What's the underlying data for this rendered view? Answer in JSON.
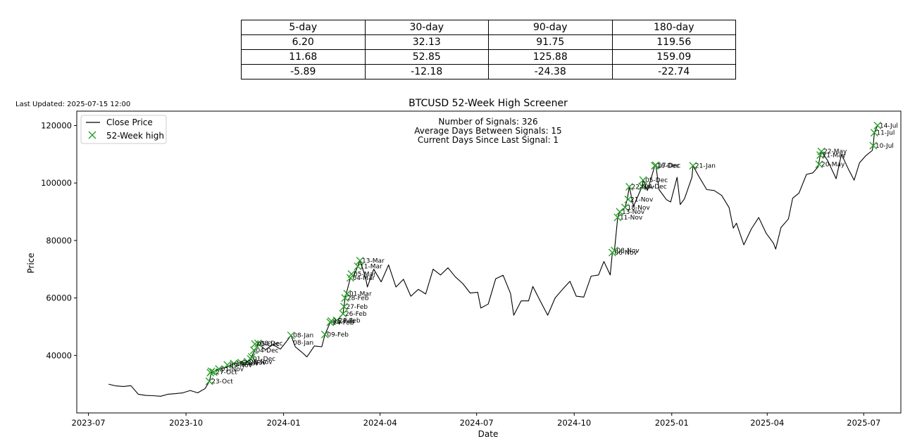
{
  "stats_table": {
    "headers": [
      "5-day",
      "30-day",
      "90-day",
      "180-day"
    ],
    "rows": [
      [
        "6.20",
        "32.13",
        "91.75",
        "119.56"
      ],
      [
        "11.68",
        "52.85",
        "125.88",
        "159.09"
      ],
      [
        "-5.89",
        "-12.18",
        "-24.38",
        "-22.74"
      ]
    ]
  },
  "last_updated": "Last Updated: 2025-07-15 12:00",
  "chart_data": {
    "type": "line",
    "title": "BTCUSD 52-Week High Screener",
    "xlabel": "Date",
    "ylabel": "Price",
    "ylim": [
      20000,
      125000
    ],
    "xlim": [
      "2023-06-20",
      "2025-08-05"
    ],
    "x_ticks": [
      "2023-07",
      "2023-10",
      "2024-01",
      "2024-04",
      "2024-07",
      "2024-10",
      "2025-01",
      "2025-04",
      "2025-07"
    ],
    "y_ticks": [
      40000,
      60000,
      80000,
      100000,
      120000
    ],
    "y_tick_labels": [
      "40000",
      "60000",
      "80000",
      "100000",
      "120000"
    ],
    "legend": {
      "location": "top-left",
      "entries": [
        "Close Price",
        "52-Week high"
      ]
    },
    "colors": {
      "line": "#000000",
      "marker": "#2ca02c"
    },
    "annotations": [
      "Number of Signals: 326",
      "Average Days Between Signals: 15",
      "Current Days Since Last Signal: 1"
    ],
    "series": [
      {
        "name": "Close Price",
        "points": [
          [
            "2023-07-20",
            30000
          ],
          [
            "2023-07-27",
            29400
          ],
          [
            "2023-08-03",
            29200
          ],
          [
            "2023-08-10",
            29500
          ],
          [
            "2023-08-17",
            26500
          ],
          [
            "2023-08-24",
            26100
          ],
          [
            "2023-08-31",
            26000
          ],
          [
            "2023-09-07",
            25800
          ],
          [
            "2023-09-14",
            26500
          ],
          [
            "2023-09-21",
            26700
          ],
          [
            "2023-09-28",
            27000
          ],
          [
            "2023-10-05",
            27800
          ],
          [
            "2023-10-12",
            27000
          ],
          [
            "2023-10-19",
            28500
          ],
          [
            "2023-10-23",
            31000
          ],
          [
            "2023-10-25",
            34000
          ],
          [
            "2023-11-01",
            35300
          ],
          [
            "2023-11-08",
            35800
          ],
          [
            "2023-11-15",
            37200
          ],
          [
            "2023-11-22",
            37500
          ],
          [
            "2023-11-29",
            37800
          ],
          [
            "2023-12-05",
            41800
          ],
          [
            "2023-12-08",
            44000
          ],
          [
            "2023-12-15",
            42000
          ],
          [
            "2023-12-22",
            43800
          ],
          [
            "2023-12-29",
            42200
          ],
          [
            "2024-01-03",
            44500
          ],
          [
            "2024-01-08",
            47000
          ],
          [
            "2024-01-12",
            43000
          ],
          [
            "2024-01-18",
            41200
          ],
          [
            "2024-01-23",
            39500
          ],
          [
            "2024-01-30",
            43300
          ],
          [
            "2024-02-06",
            43000
          ],
          [
            "2024-02-09",
            47300
          ],
          [
            "2024-02-14",
            51500
          ],
          [
            "2024-02-20",
            52000
          ],
          [
            "2024-02-26",
            54500
          ],
          [
            "2024-02-28",
            60000
          ],
          [
            "2024-03-04",
            67000
          ],
          [
            "2024-03-08",
            68300
          ],
          [
            "2024-03-13",
            73000
          ],
          [
            "2024-03-18",
            67500
          ],
          [
            "2024-03-20",
            63800
          ],
          [
            "2024-03-26",
            70000
          ],
          [
            "2024-04-02",
            65600
          ],
          [
            "2024-04-09",
            71500
          ],
          [
            "2024-04-16",
            63800
          ],
          [
            "2024-04-23",
            66500
          ],
          [
            "2024-04-30",
            60600
          ],
          [
            "2024-05-07",
            63000
          ],
          [
            "2024-05-14",
            61400
          ],
          [
            "2024-05-21",
            70000
          ],
          [
            "2024-05-28",
            68000
          ],
          [
            "2024-06-04",
            70500
          ],
          [
            "2024-06-11",
            67300
          ],
          [
            "2024-06-18",
            65000
          ],
          [
            "2024-06-25",
            61700
          ],
          [
            "2024-07-02",
            62000
          ],
          [
            "2024-07-05",
            56500
          ],
          [
            "2024-07-12",
            57900
          ],
          [
            "2024-07-19",
            66700
          ],
          [
            "2024-07-26",
            67900
          ],
          [
            "2024-08-02",
            61500
          ],
          [
            "2024-08-05",
            54000
          ],
          [
            "2024-08-12",
            59000
          ],
          [
            "2024-08-19",
            59000
          ],
          [
            "2024-08-23",
            64000
          ],
          [
            "2024-08-30",
            59000
          ],
          [
            "2024-09-06",
            54000
          ],
          [
            "2024-09-13",
            60000
          ],
          [
            "2024-09-20",
            63000
          ],
          [
            "2024-09-27",
            65800
          ],
          [
            "2024-10-03",
            60600
          ],
          [
            "2024-10-10",
            60300
          ],
          [
            "2024-10-17",
            67600
          ],
          [
            "2024-10-24",
            68000
          ],
          [
            "2024-10-29",
            72700
          ],
          [
            "2024-11-04",
            68000
          ],
          [
            "2024-11-06",
            75800
          ],
          [
            "2024-11-08",
            76500
          ],
          [
            "2024-11-11",
            88000
          ],
          [
            "2024-11-13",
            90000
          ],
          [
            "2024-11-18",
            91500
          ],
          [
            "2024-11-20",
            94300
          ],
          [
            "2024-11-22",
            98700
          ],
          [
            "2024-11-26",
            91900
          ],
          [
            "2024-12-04",
            98800
          ],
          [
            "2024-12-05",
            101000
          ],
          [
            "2024-12-09",
            97400
          ],
          [
            "2024-12-12",
            101000
          ],
          [
            "2024-12-16",
            106000
          ],
          [
            "2024-12-17",
            106200
          ],
          [
            "2024-12-20",
            97700
          ],
          [
            "2024-12-27",
            94200
          ],
          [
            "2024-12-31",
            93400
          ],
          [
            "2025-01-06",
            102000
          ],
          [
            "2025-01-09",
            92500
          ],
          [
            "2025-01-13",
            94500
          ],
          [
            "2025-01-20",
            102000
          ],
          [
            "2025-01-21",
            106000
          ],
          [
            "2025-01-27",
            102000
          ],
          [
            "2025-02-03",
            97700
          ],
          [
            "2025-02-10",
            97400
          ],
          [
            "2025-02-17",
            95700
          ],
          [
            "2025-02-24",
            91500
          ],
          [
            "2025-02-28",
            84300
          ],
          [
            "2025-03-03",
            86000
          ],
          [
            "2025-03-10",
            78500
          ],
          [
            "2025-03-17",
            84000
          ],
          [
            "2025-03-24",
            88000
          ],
          [
            "2025-03-31",
            82500
          ],
          [
            "2025-04-07",
            79000
          ],
          [
            "2025-04-09",
            77000
          ],
          [
            "2025-04-14",
            84500
          ],
          [
            "2025-04-21",
            87500
          ],
          [
            "2025-04-25",
            94700
          ],
          [
            "2025-05-01",
            96500
          ],
          [
            "2025-05-08",
            103000
          ],
          [
            "2025-05-14",
            103500
          ],
          [
            "2025-05-19",
            105600
          ],
          [
            "2025-05-21",
            109700
          ],
          [
            "2025-05-22",
            111000
          ],
          [
            "2025-05-28",
            107800
          ],
          [
            "2025-06-05",
            101500
          ],
          [
            "2025-06-10",
            110000
          ],
          [
            "2025-06-17",
            104500
          ],
          [
            "2025-06-22",
            101000
          ],
          [
            "2025-06-27",
            107000
          ],
          [
            "2025-07-03",
            109500
          ],
          [
            "2025-07-09",
            111300
          ],
          [
            "2025-07-10",
            113000
          ],
          [
            "2025-07-11",
            117500
          ],
          [
            "2025-07-14",
            120000
          ]
        ]
      },
      {
        "name": "52-Week high",
        "marker": "x",
        "points": [
          [
            "2023-10-23",
            31000
          ],
          [
            "2023-10-24",
            34000
          ],
          [
            "2023-10-25",
            34500
          ],
          [
            "2023-10-27",
            34200
          ],
          [
            "2023-11-01",
            35300
          ],
          [
            "2023-11-09",
            36700
          ],
          [
            "2023-11-15",
            37200
          ],
          [
            "2023-11-22",
            37500
          ],
          [
            "2023-11-28",
            37800
          ],
          [
            "2023-12-01",
            38800
          ],
          [
            "2023-12-02",
            39500
          ],
          [
            "2023-12-04",
            41800
          ],
          [
            "2023-12-05",
            44000
          ],
          [
            "2023-12-08",
            44200
          ],
          [
            "2024-01-08",
            47000
          ],
          [
            "2024-02-09",
            47300
          ],
          [
            "2024-02-14",
            51500
          ],
          [
            "2024-02-15",
            52000
          ],
          [
            "2024-02-20",
            52200
          ],
          [
            "2024-02-26",
            54500
          ],
          [
            "2024-02-27",
            57000
          ],
          [
            "2024-02-28",
            60000
          ],
          [
            "2024-03-01",
            61500
          ],
          [
            "2024-03-04",
            67000
          ],
          [
            "2024-03-05",
            68300
          ],
          [
            "2024-03-11",
            71000
          ],
          [
            "2024-03-13",
            73000
          ],
          [
            "2024-11-06",
            75800
          ],
          [
            "2024-11-08",
            76500
          ],
          [
            "2024-11-11",
            88000
          ],
          [
            "2024-11-13",
            90000
          ],
          [
            "2024-11-18",
            91500
          ],
          [
            "2024-11-21",
            94300
          ],
          [
            "2024-11-22",
            98700
          ],
          [
            "2024-12-04",
            98800
          ],
          [
            "2024-12-05",
            101000
          ],
          [
            "2024-12-16",
            106000
          ],
          [
            "2024-12-17",
            106200
          ],
          [
            "2025-01-21",
            106000
          ],
          [
            "2025-05-20",
            106500
          ],
          [
            "2025-05-21",
            109700
          ],
          [
            "2025-05-22",
            111000
          ],
          [
            "2025-07-10",
            113000
          ],
          [
            "2025-07-11",
            117500
          ],
          [
            "2025-07-14",
            120000
          ]
        ],
        "labels": [
          {
            "date": "2023-10-23",
            "price": 31000,
            "text": "23-Oct"
          },
          {
            "date": "2023-10-27",
            "price": 34200,
            "text": "27-Oct"
          },
          {
            "date": "2023-11-01",
            "price": 35300,
            "text": "01-Nov"
          },
          {
            "date": "2023-11-09",
            "price": 36700,
            "text": "09-Nov"
          },
          {
            "date": "2023-11-15",
            "price": 37200,
            "text": "15-Nov"
          },
          {
            "date": "2023-11-22",
            "price": 37500,
            "text": "22-Nov"
          },
          {
            "date": "2023-11-28",
            "price": 37800,
            "text": "28-Nov"
          },
          {
            "date": "2023-12-01",
            "price": 38800,
            "text": "01-Dec"
          },
          {
            "date": "2023-12-04",
            "price": 41800,
            "text": "04-Dec"
          },
          {
            "date": "2023-12-05",
            "price": 44000,
            "text": "05-Dec"
          },
          {
            "date": "2023-12-08",
            "price": 44200,
            "text": "08-Dec"
          },
          {
            "date": "2024-01-08",
            "price": 44500,
            "text": "08-Jan"
          },
          {
            "date": "2024-01-08",
            "price": 47000,
            "text": "08-Jan"
          },
          {
            "date": "2024-02-09",
            "price": 47300,
            "text": "09-Feb"
          },
          {
            "date": "2024-02-14",
            "price": 51500,
            "text": "14-Feb"
          },
          {
            "date": "2024-02-15",
            "price": 52000,
            "text": "15-Feb"
          },
          {
            "date": "2024-02-20",
            "price": 52200,
            "text": "20-Feb"
          },
          {
            "date": "2024-02-26",
            "price": 54500,
            "text": "26-Feb"
          },
          {
            "date": "2024-02-27",
            "price": 57000,
            "text": "27-Feb"
          },
          {
            "date": "2024-02-28",
            "price": 60000,
            "text": "28-Feb"
          },
          {
            "date": "2024-03-01",
            "price": 61500,
            "text": "01-Mar"
          },
          {
            "date": "2024-03-04",
            "price": 67000,
            "text": "04-Mar"
          },
          {
            "date": "2024-03-05",
            "price": 68300,
            "text": "05-Mar"
          },
          {
            "date": "2024-03-11",
            "price": 71000,
            "text": "11-Mar"
          },
          {
            "date": "2024-03-13",
            "price": 73000,
            "text": "13-Mar"
          },
          {
            "date": "2024-11-06",
            "price": 75800,
            "text": "06-Nov"
          },
          {
            "date": "2024-11-08",
            "price": 76500,
            "text": "08-Nov"
          },
          {
            "date": "2024-11-11",
            "price": 88000,
            "text": "11-Nov"
          },
          {
            "date": "2024-11-13",
            "price": 90000,
            "text": "13-Nov"
          },
          {
            "date": "2024-11-18",
            "price": 91500,
            "text": "18-Nov"
          },
          {
            "date": "2024-11-21",
            "price": 94300,
            "text": "21-Nov"
          },
          {
            "date": "2024-11-22",
            "price": 98700,
            "text": "22-Nov"
          },
          {
            "date": "2024-12-04",
            "price": 98800,
            "text": "04-Dec"
          },
          {
            "date": "2024-12-05",
            "price": 101000,
            "text": "05-Dec"
          },
          {
            "date": "2024-12-16",
            "price": 106000,
            "text": "16-Dec"
          },
          {
            "date": "2024-12-17",
            "price": 106200,
            "text": "17-Dec"
          },
          {
            "date": "2025-01-21",
            "price": 106000,
            "text": "21-Jan"
          },
          {
            "date": "2025-05-20",
            "price": 106500,
            "text": "20-May"
          },
          {
            "date": "2025-05-21",
            "price": 109700,
            "text": "21-May"
          },
          {
            "date": "2025-05-22",
            "price": 111000,
            "text": "22-May"
          },
          {
            "date": "2025-07-10",
            "price": 113000,
            "text": "10-Jul"
          },
          {
            "date": "2025-07-11",
            "price": 117500,
            "text": "11-Jul"
          },
          {
            "date": "2025-07-14",
            "price": 120000,
            "text": "14-Jul"
          }
        ]
      }
    ]
  }
}
